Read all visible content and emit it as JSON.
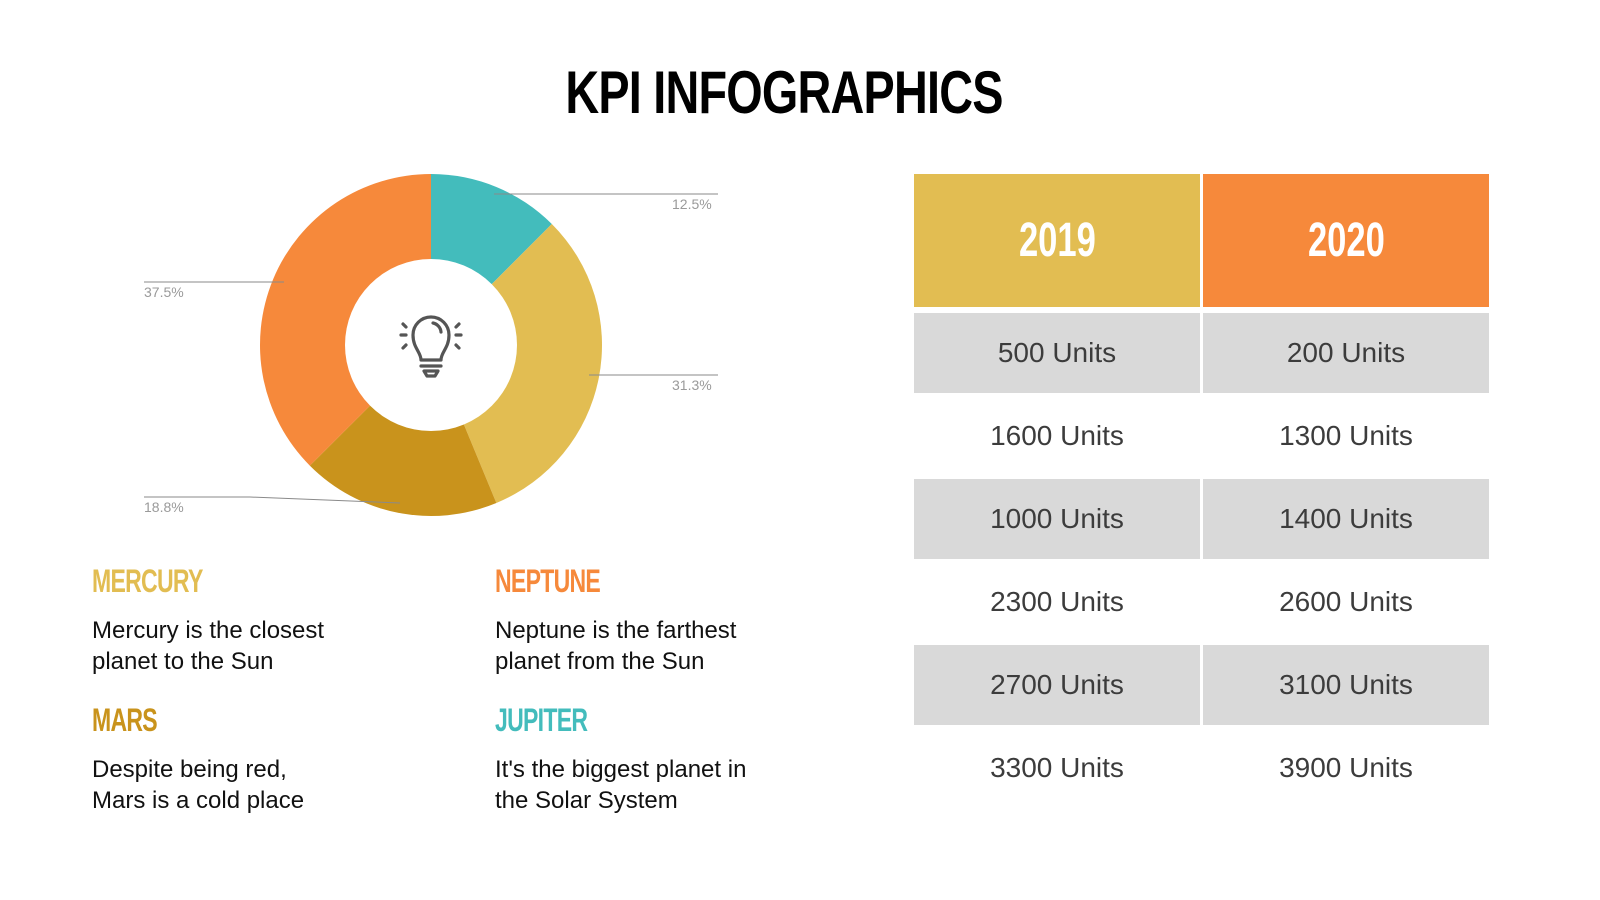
{
  "title": "KPI INFOGRAPHICS",
  "colors": {
    "jupiter": "#43bcbc",
    "mercury": "#e2bd52",
    "mars": "#c9931c",
    "neptune": "#f6893b",
    "table_header_2019": "#e2bd52",
    "table_header_2020": "#f6893b",
    "row_shade": "#d9d9d9"
  },
  "chart_data": {
    "type": "pie",
    "subtype": "donut",
    "title": "",
    "center_icon": "lightbulb-icon",
    "slices": [
      {
        "label": "Jupiter",
        "value": 12.5,
        "display": "12.5%",
        "color": "#43bcbc"
      },
      {
        "label": "Mercury",
        "value": 31.3,
        "display": "31.3%",
        "color": "#e2bd52"
      },
      {
        "label": "Mars",
        "value": 18.8,
        "display": "18.8%",
        "color": "#c9931c"
      },
      {
        "label": "Neptune",
        "value": 37.5,
        "display": "37.5%",
        "color": "#f6893b"
      }
    ],
    "start_angle_deg": 0,
    "direction": "clockwise",
    "legend_position": "below"
  },
  "legend": [
    {
      "name": "MERCURY",
      "desc_line1": "Mercury is the closest",
      "desc_line2": "planet to the Sun",
      "color": "#e2bd52"
    },
    {
      "name": "NEPTUNE",
      "desc_line1": "Neptune is the farthest",
      "desc_line2": "planet from the Sun",
      "color": "#f6893b"
    },
    {
      "name": "MARS",
      "desc_line1": "Despite being red,",
      "desc_line2": "Mars is a cold place",
      "color": "#c9931c"
    },
    {
      "name": "JUPITER",
      "desc_line1": "It's the biggest planet in",
      "desc_line2": "the Solar System",
      "color": "#43bcbc"
    }
  ],
  "table": {
    "headers": [
      "2019",
      "2020"
    ],
    "rows": [
      [
        "500 Units",
        "200 Units"
      ],
      [
        "1600 Units",
        "1300 Units"
      ],
      [
        "1000 Units",
        "1400 Units"
      ],
      [
        "2300 Units",
        "2600 Units"
      ],
      [
        "2700 Units",
        "3100 Units"
      ],
      [
        "3300 Units",
        "3900 Units"
      ]
    ]
  }
}
